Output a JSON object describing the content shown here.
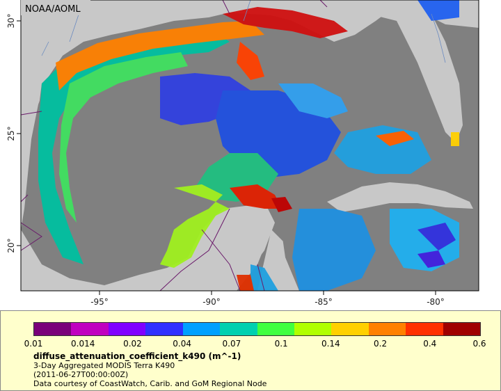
{
  "map": {
    "org_label": "NOAA/AOML",
    "lon_ticks": [
      "-95°",
      "-90°",
      "-85°",
      "-80°"
    ],
    "lat_ticks": [
      "30°",
      "25°",
      "20°"
    ]
  },
  "legend": {
    "colorbar_labels": [
      "0.01",
      "0.014",
      "0.02",
      "0.04",
      "0.07",
      "0.1",
      "0.14",
      "0.2",
      "0.4",
      "0.6"
    ],
    "colors": [
      "#7a007a",
      "#c000c0",
      "#8000ff",
      "#3030ff",
      "#00a0ff",
      "#00d0b0",
      "#40ff40",
      "#b0ff00",
      "#ffd000",
      "#ff8000",
      "#ff3000",
      "#a00000"
    ],
    "variable": "diffuse_attenuation_coefficient_k490 (m^-1)",
    "dataset": "3-Day Aggregated MODIS Terra K490",
    "time": "(2011-06-27T00:00:00Z)",
    "credit": "Data courtesy of CoastWatch, Carib. and GoM Regional Node"
  },
  "colors": {
    "land": "#c8c8c8",
    "nodata": "#808080",
    "legend_bg": "#ffffcc"
  }
}
